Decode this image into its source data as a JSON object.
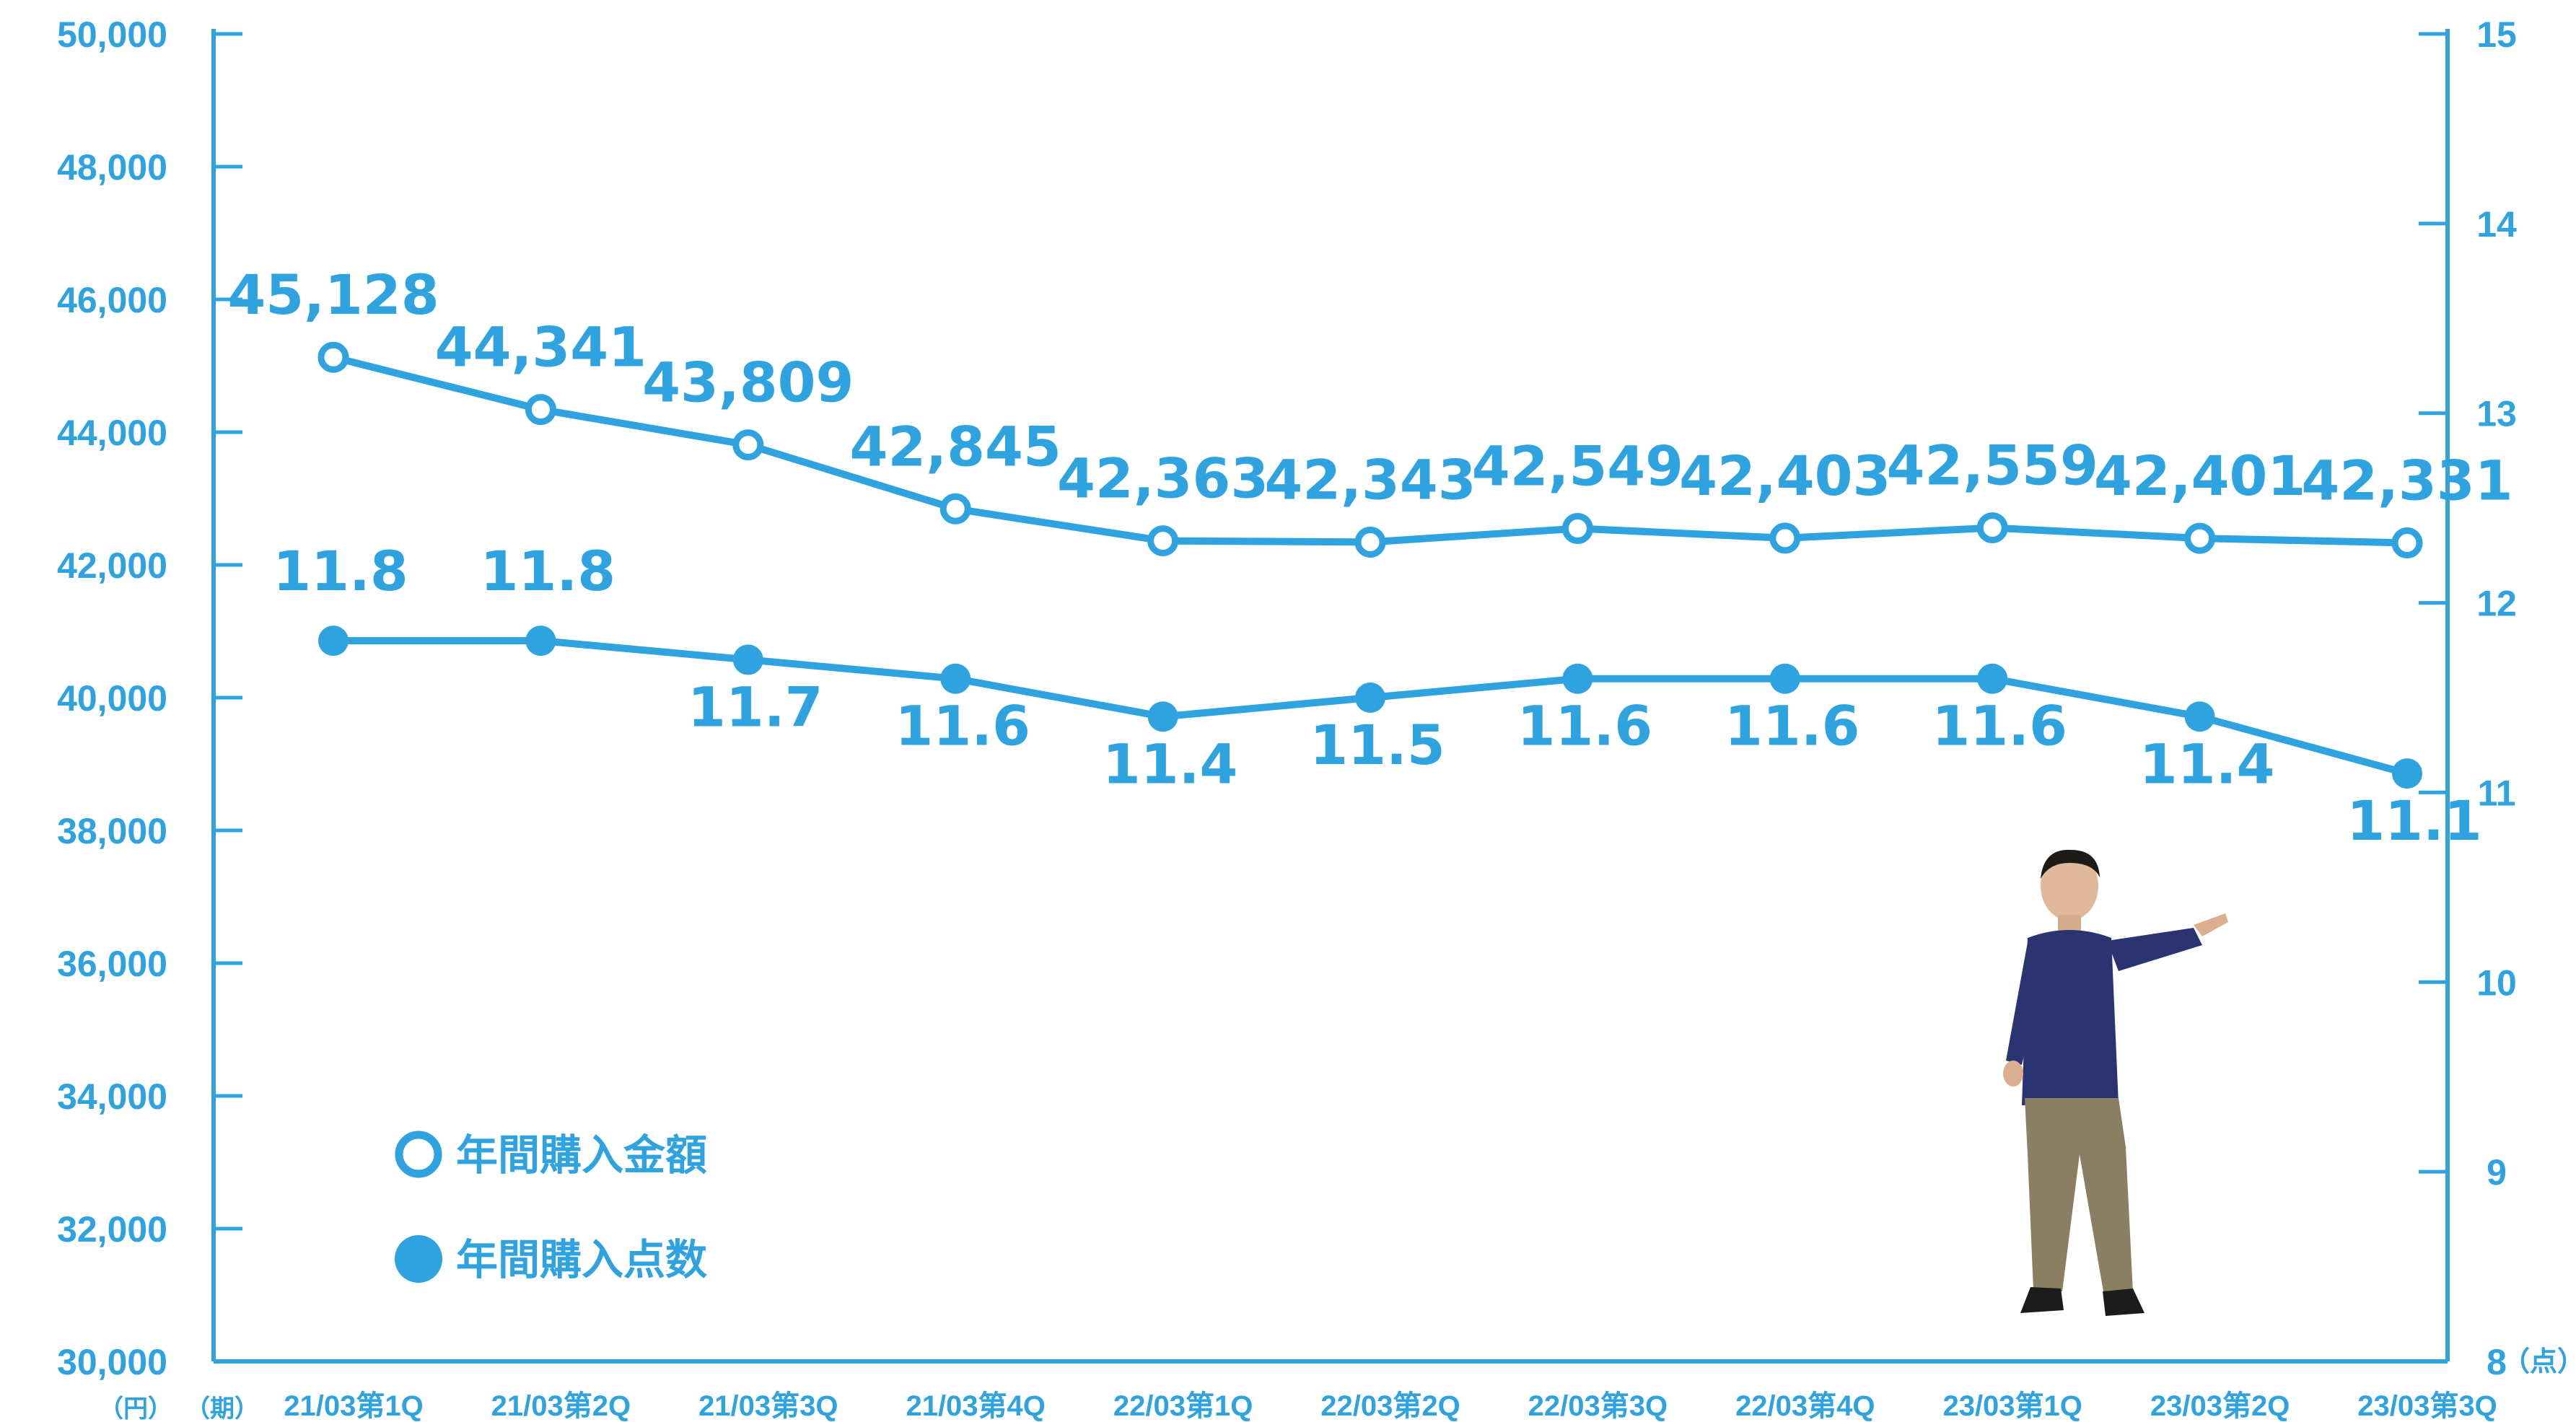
{
  "colors": {
    "accent": "#2ea3e0",
    "background": "#ffffff"
  },
  "units": {
    "left": "（円）",
    "right": "（点）",
    "period": "（期）"
  },
  "legend": {
    "amount": "年間購入金額",
    "count": "年間購入点数"
  },
  "chart_data": {
    "type": "line",
    "categories": [
      "21/03第1Q",
      "21/03第2Q",
      "21/03第3Q",
      "21/03第4Q",
      "22/03第1Q",
      "22/03第2Q",
      "22/03第3Q",
      "22/03第4Q",
      "23/03第1Q",
      "23/03第2Q",
      "23/03第3Q"
    ],
    "y_left_ticks": [
      "30,000",
      "32,000",
      "34,000",
      "36,000",
      "38,000",
      "40,000",
      "42,000",
      "44,000",
      "46,000",
      "48,000",
      "50,000"
    ],
    "y_right_ticks": [
      "8",
      "9",
      "10",
      "11",
      "12",
      "13",
      "14",
      "15"
    ],
    "ylim_left": [
      30000,
      50000
    ],
    "ylim_right": [
      8,
      15
    ],
    "grid": false,
    "legend_position": "bottom-left",
    "series": [
      {
        "name": "年間購入金額",
        "axis": "left",
        "marker": "hollow-circle",
        "values": [
          45128,
          44341,
          43809,
          42845,
          42363,
          42343,
          42549,
          42403,
          42559,
          42401,
          42331
        ],
        "labels": [
          "45,128",
          "44,341",
          "43,809",
          "42,845",
          "42,363",
          "42,343",
          "42,549",
          "42,403",
          "42,559",
          "42,401",
          "42,331"
        ]
      },
      {
        "name": "年間購入点数",
        "axis": "right",
        "marker": "filled-circle",
        "values": [
          11.8,
          11.8,
          11.7,
          11.6,
          11.4,
          11.5,
          11.6,
          11.6,
          11.6,
          11.4,
          11.1
        ],
        "labels": [
          "11.8",
          "11.8",
          "11.7",
          "11.6",
          "11.4",
          "11.5",
          "11.6",
          "11.6",
          "11.6",
          "11.4",
          "11.1"
        ]
      }
    ]
  }
}
